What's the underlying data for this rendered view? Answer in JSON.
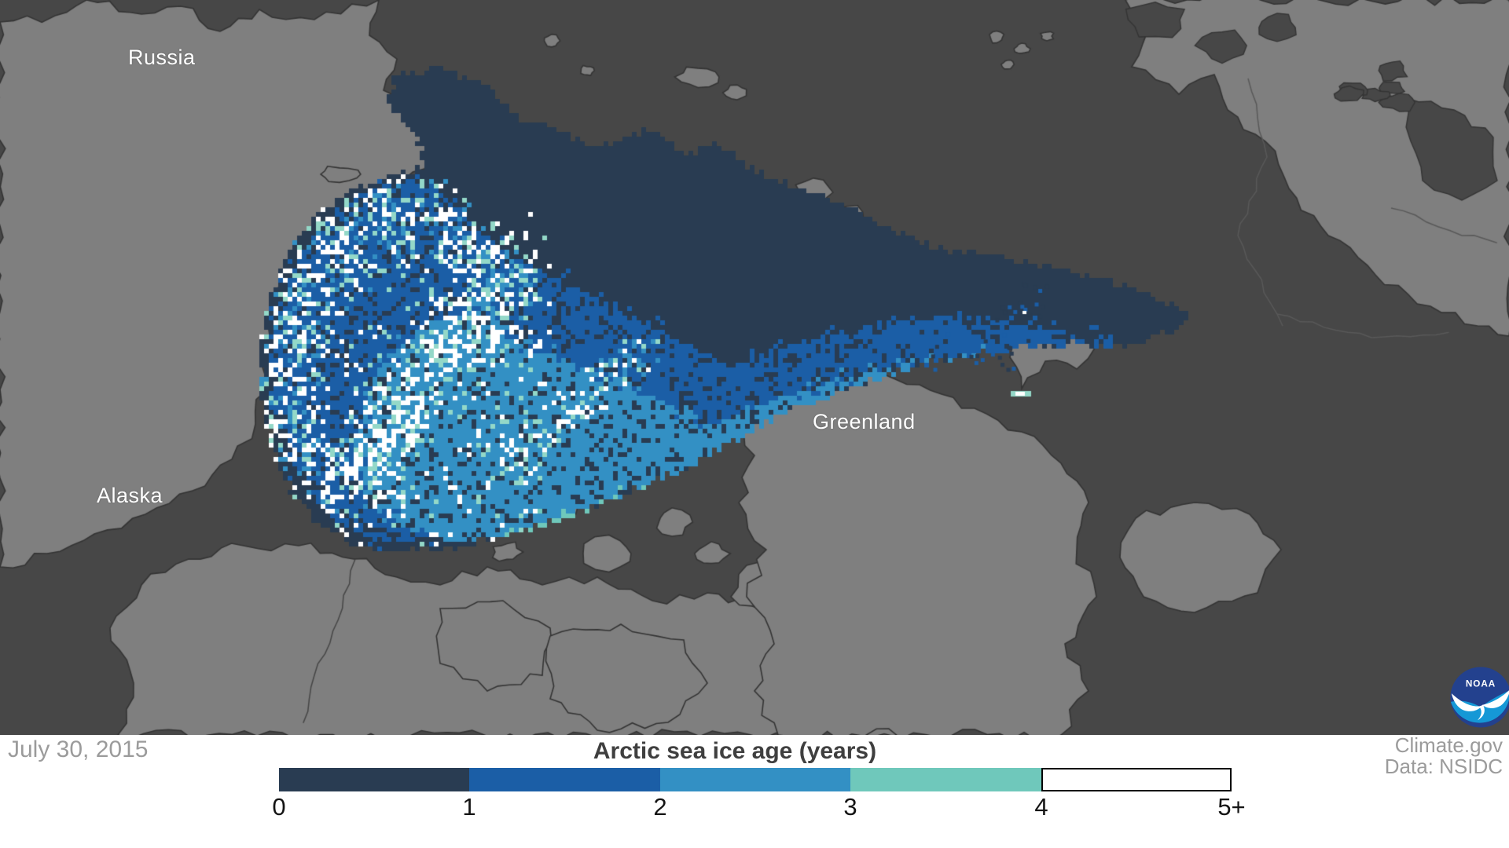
{
  "map": {
    "labels": {
      "russia": "Russia",
      "alaska": "Alaska",
      "greenland": "Greenland"
    },
    "colors": {
      "land": "#7f7f7f",
      "ocean": "#474747",
      "coast": "#343434",
      "detail_line": "#595959"
    }
  },
  "legend": {
    "title": "Arctic sea ice age (years)",
    "ticks": [
      "0",
      "1",
      "2",
      "3",
      "4",
      "5+"
    ],
    "segments": [
      {
        "range": "0-1",
        "color": "#293c52"
      },
      {
        "range": "1-2",
        "color": "#1b5ea6"
      },
      {
        "range": "2-3",
        "color": "#3390c4"
      },
      {
        "range": "3-4",
        "color": "#6fc8bb"
      },
      {
        "range": "4-5+",
        "color": "#ffffff"
      }
    ],
    "mint": "#93d8c8",
    "white": "#ffffff"
  },
  "footer": {
    "date": "July 30, 2015",
    "attribution": [
      "Climate.gov",
      "Data: NSIDC"
    ]
  },
  "noaa": {
    "label": "NOAA",
    "top_color": "#23418e",
    "bottom_color": "#1598d6"
  },
  "chart_data": {
    "type": "heatmap",
    "title": "Arctic sea ice age (years)",
    "date_label": "July 30, 2015",
    "colorbar": {
      "label": "Arctic sea ice age (years)",
      "ticks": [
        "0",
        "1",
        "2",
        "3",
        "4",
        "5+"
      ],
      "colors": [
        "#293c52",
        "#1b5ea6",
        "#3390c4",
        "#6fc8bb",
        "#ffffff"
      ],
      "unit": "years"
    },
    "region_labels": [
      "Russia",
      "Alaska",
      "Greenland"
    ],
    "provider": "Climate.gov",
    "source": "Data: NSIDC"
  }
}
